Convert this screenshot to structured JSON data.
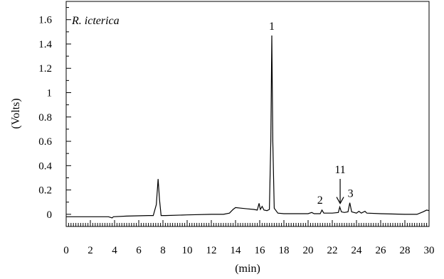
{
  "chart_data": {
    "type": "line",
    "title": "R. icterica",
    "xlabel": "(min)",
    "ylabel": "(Volts)",
    "xlim": [
      0,
      30
    ],
    "ylim": [
      -0.1,
      1.75
    ],
    "x_ticks": [
      0,
      2,
      4,
      6,
      8,
      10,
      12,
      14,
      16,
      18,
      20,
      22,
      24,
      26,
      28,
      30
    ],
    "x_tick_labels": [
      "0",
      "2",
      "4",
      "6",
      "8",
      "10",
      "12",
      "14",
      "16",
      "18",
      "20",
      "22",
      "24",
      "26",
      "28",
      "30"
    ],
    "y_ticks": [
      0,
      0.2,
      0.4,
      0.6,
      0.8,
      1.0,
      1.2,
      1.4,
      1.6
    ],
    "y_tick_labels": [
      "0",
      "0.2",
      "0.4",
      "0.6",
      "0.8",
      "1",
      "1.2",
      "1.4",
      "1.6"
    ],
    "grid": false,
    "series": [
      {
        "color": "#000000",
        "points": [
          [
            0.0,
            -0.02
          ],
          [
            2.0,
            -0.02
          ],
          [
            3.5,
            -0.02
          ],
          [
            3.8,
            -0.03
          ],
          [
            3.9,
            -0.02
          ],
          [
            5.0,
            -0.015
          ],
          [
            6.8,
            -0.01
          ],
          [
            7.2,
            -0.01
          ],
          [
            7.45,
            0.08
          ],
          [
            7.6,
            0.29
          ],
          [
            7.72,
            0.12
          ],
          [
            7.85,
            -0.01
          ],
          [
            8.2,
            -0.01
          ],
          [
            10.0,
            -0.005
          ],
          [
            12.0,
            0.0
          ],
          [
            13.0,
            0.0
          ],
          [
            13.5,
            0.01
          ],
          [
            13.8,
            0.04
          ],
          [
            14.0,
            0.055
          ],
          [
            14.5,
            0.05
          ],
          [
            15.0,
            0.045
          ],
          [
            15.5,
            0.04
          ],
          [
            15.8,
            0.035
          ],
          [
            15.95,
            0.09
          ],
          [
            16.05,
            0.04
          ],
          [
            16.2,
            0.065
          ],
          [
            16.35,
            0.035
          ],
          [
            16.6,
            0.03
          ],
          [
            16.8,
            0.04
          ],
          [
            16.92,
            0.6
          ],
          [
            17.0,
            1.47
          ],
          [
            17.08,
            0.6
          ],
          [
            17.2,
            0.05
          ],
          [
            17.5,
            0.01
          ],
          [
            18.0,
            0.005
          ],
          [
            19.0,
            0.005
          ],
          [
            20.0,
            0.005
          ],
          [
            20.3,
            0.015
          ],
          [
            20.5,
            0.005
          ],
          [
            21.0,
            0.005
          ],
          [
            21.15,
            0.035
          ],
          [
            21.3,
            0.01
          ],
          [
            22.0,
            0.01
          ],
          [
            22.5,
            0.015
          ],
          [
            22.62,
            0.06
          ],
          [
            22.75,
            0.02
          ],
          [
            23.0,
            0.015
          ],
          [
            23.3,
            0.02
          ],
          [
            23.45,
            0.095
          ],
          [
            23.6,
            0.02
          ],
          [
            24.0,
            0.01
          ],
          [
            24.2,
            0.025
          ],
          [
            24.4,
            0.01
          ],
          [
            24.7,
            0.025
          ],
          [
            24.85,
            0.01
          ],
          [
            26.0,
            0.005
          ],
          [
            28.0,
            0.0
          ],
          [
            29.0,
            0.0
          ],
          [
            29.5,
            0.02
          ],
          [
            29.8,
            0.035
          ],
          [
            30.0,
            0.03
          ]
        ]
      }
    ],
    "annotations": [
      {
        "label": "1",
        "x": 17.0,
        "y": 1.47
      },
      {
        "label": "2",
        "x": 21.1,
        "y": 0.04
      },
      {
        "label": "11",
        "x": 22.65,
        "y": 0.06,
        "arrow": true
      },
      {
        "label": "3",
        "x": 23.45,
        "y": 0.095
      }
    ]
  }
}
